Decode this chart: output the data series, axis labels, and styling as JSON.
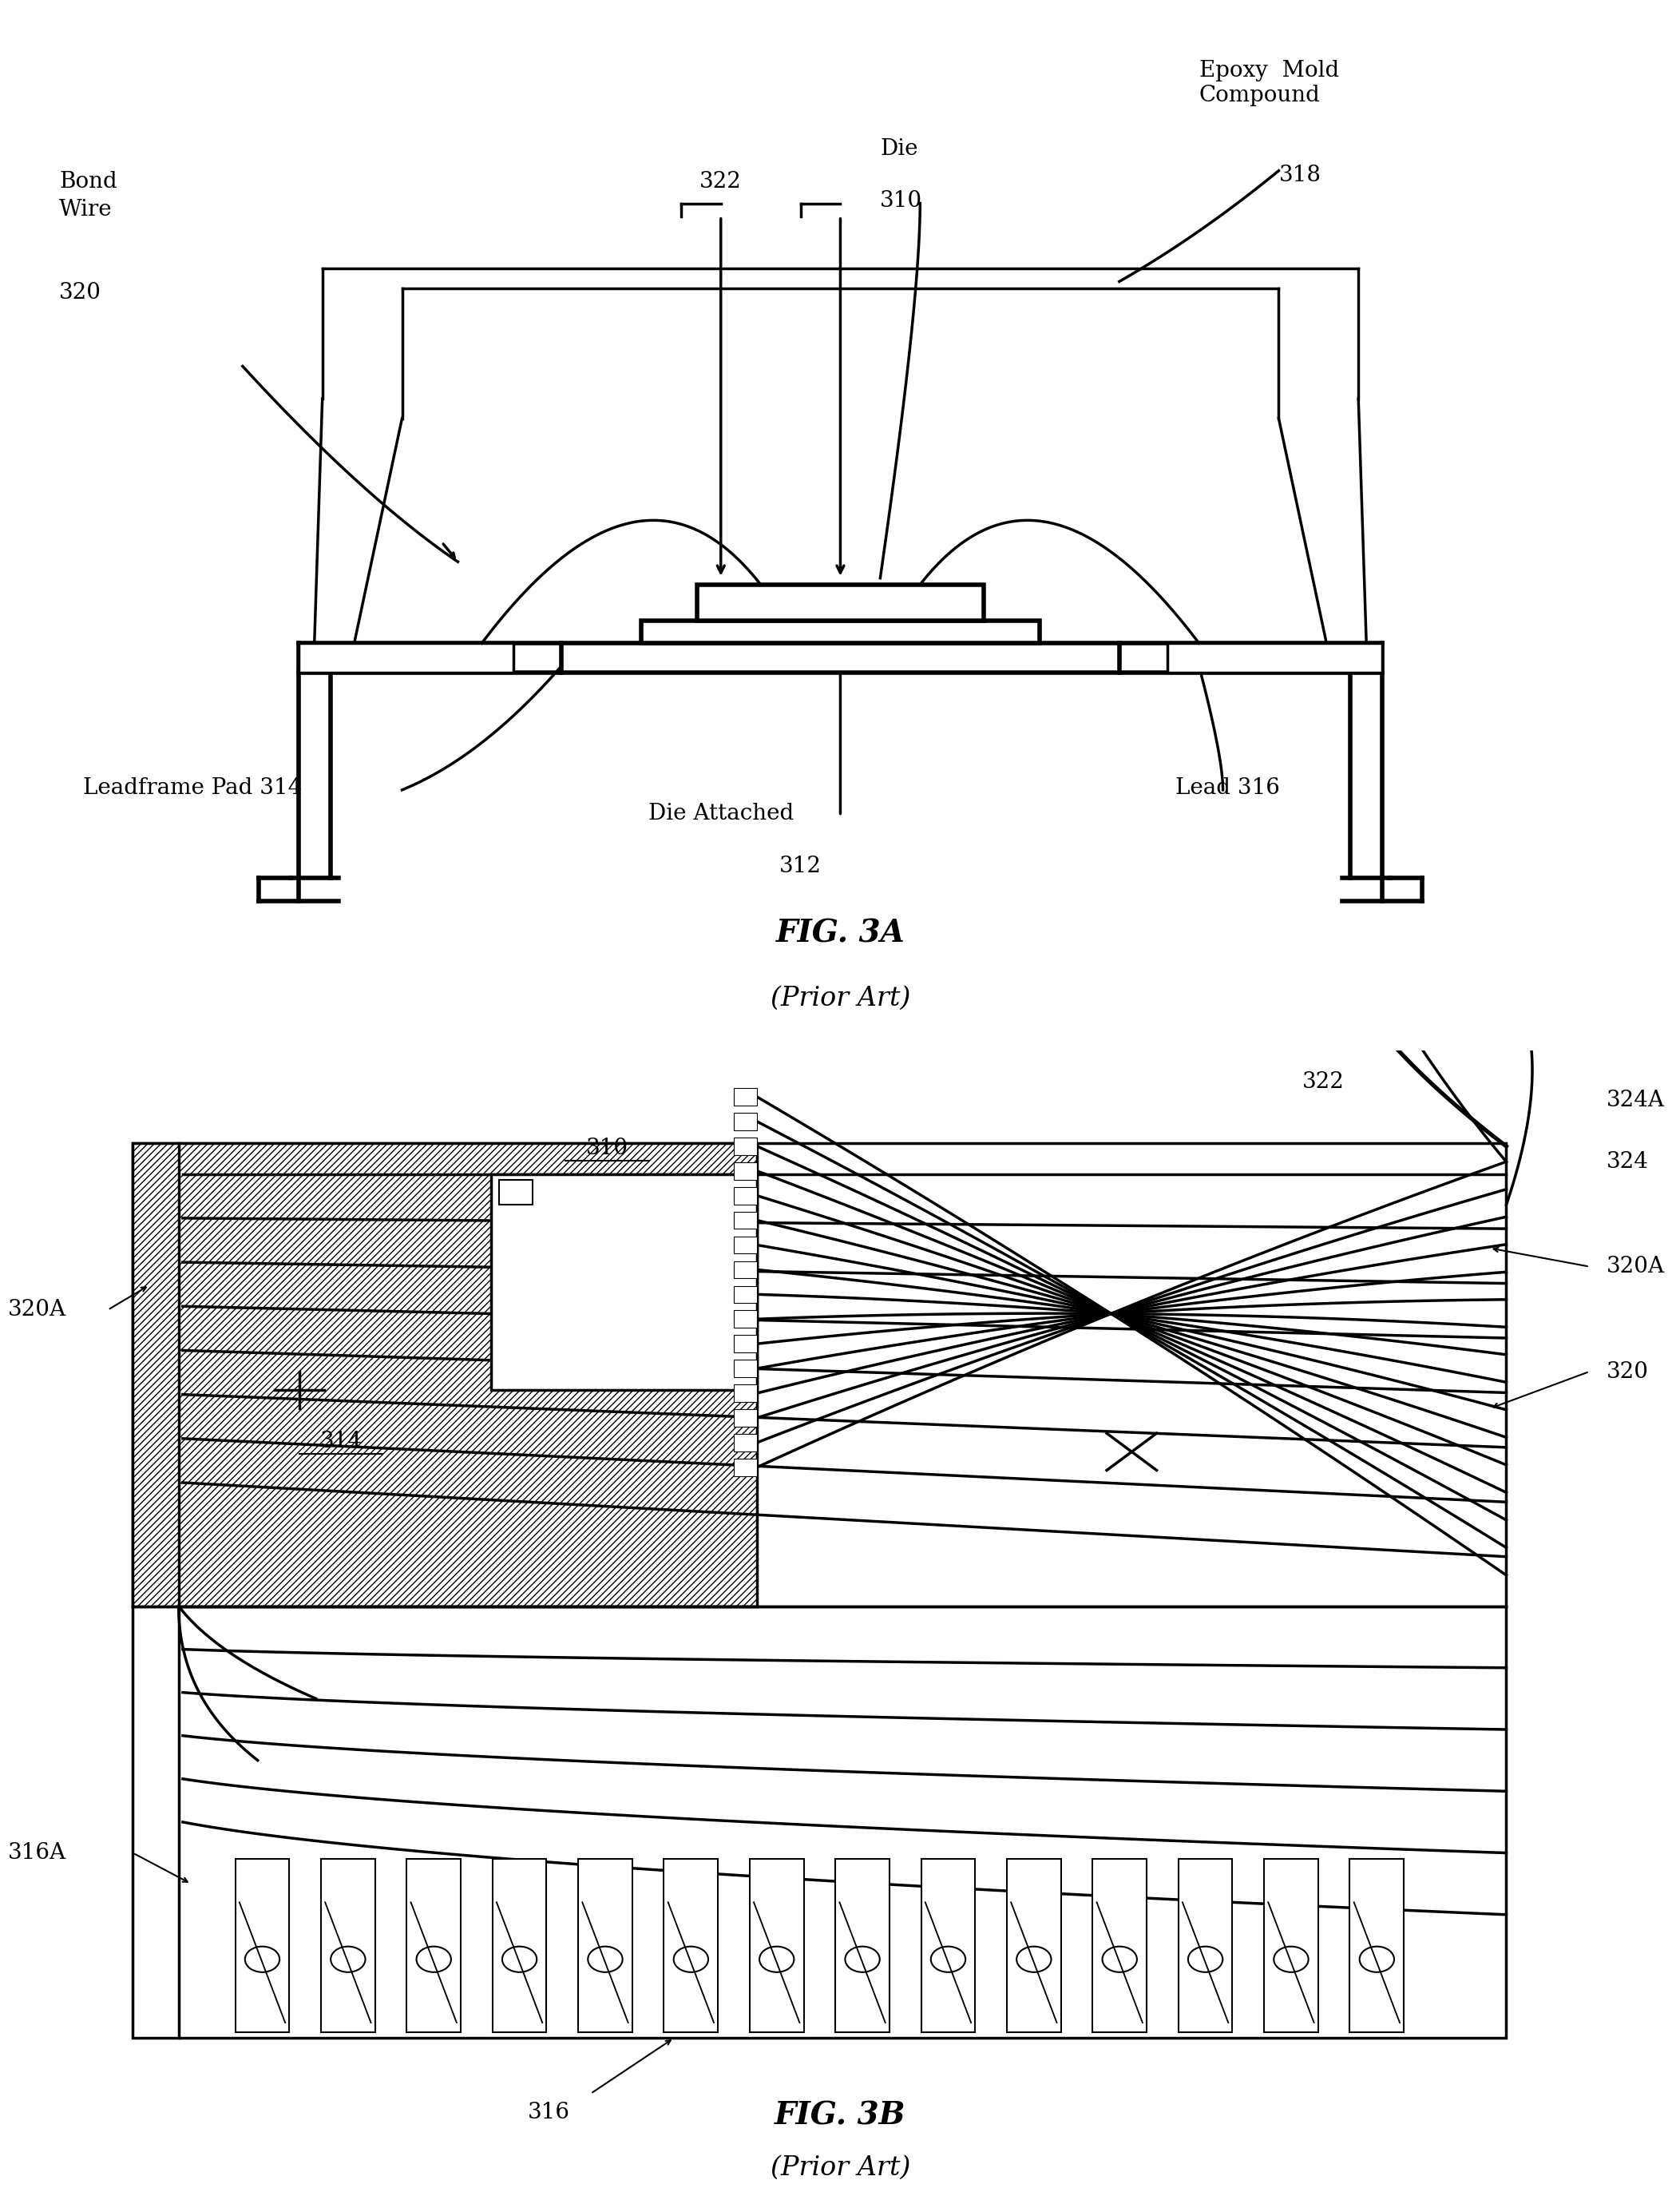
{
  "fig_title_a": "FIG. 3A",
  "fig_subtitle_a": "(Prior Art)",
  "fig_title_b": "FIG. 3B",
  "fig_subtitle_b": "(Prior Art)",
  "bg_color": "#ffffff",
  "line_color": "#000000",
  "lw_thin": 1.5,
  "lw_med": 2.5,
  "lw_thick": 4.0,
  "label_322": "322",
  "label_die": "Die",
  "label_310": "310",
  "label_bond": "Bond\nWire",
  "label_320": "320",
  "label_epoxy": "Epoxy  Mold\nCompound",
  "label_318": "318",
  "label_leadframe": "Leadframe Pad 314",
  "label_die_attached": "Die Attached",
  "label_312": "312",
  "label_lead": "Lead 316",
  "label_310b": "310",
  "label_314b": "314",
  "label_316b": "316",
  "label_316ab": "316A",
  "label_320b": "320",
  "label_320ab_l": "320A",
  "label_320ab_r": "320A",
  "label_322b": "322",
  "label_324b": "324",
  "label_324ab": "324A"
}
